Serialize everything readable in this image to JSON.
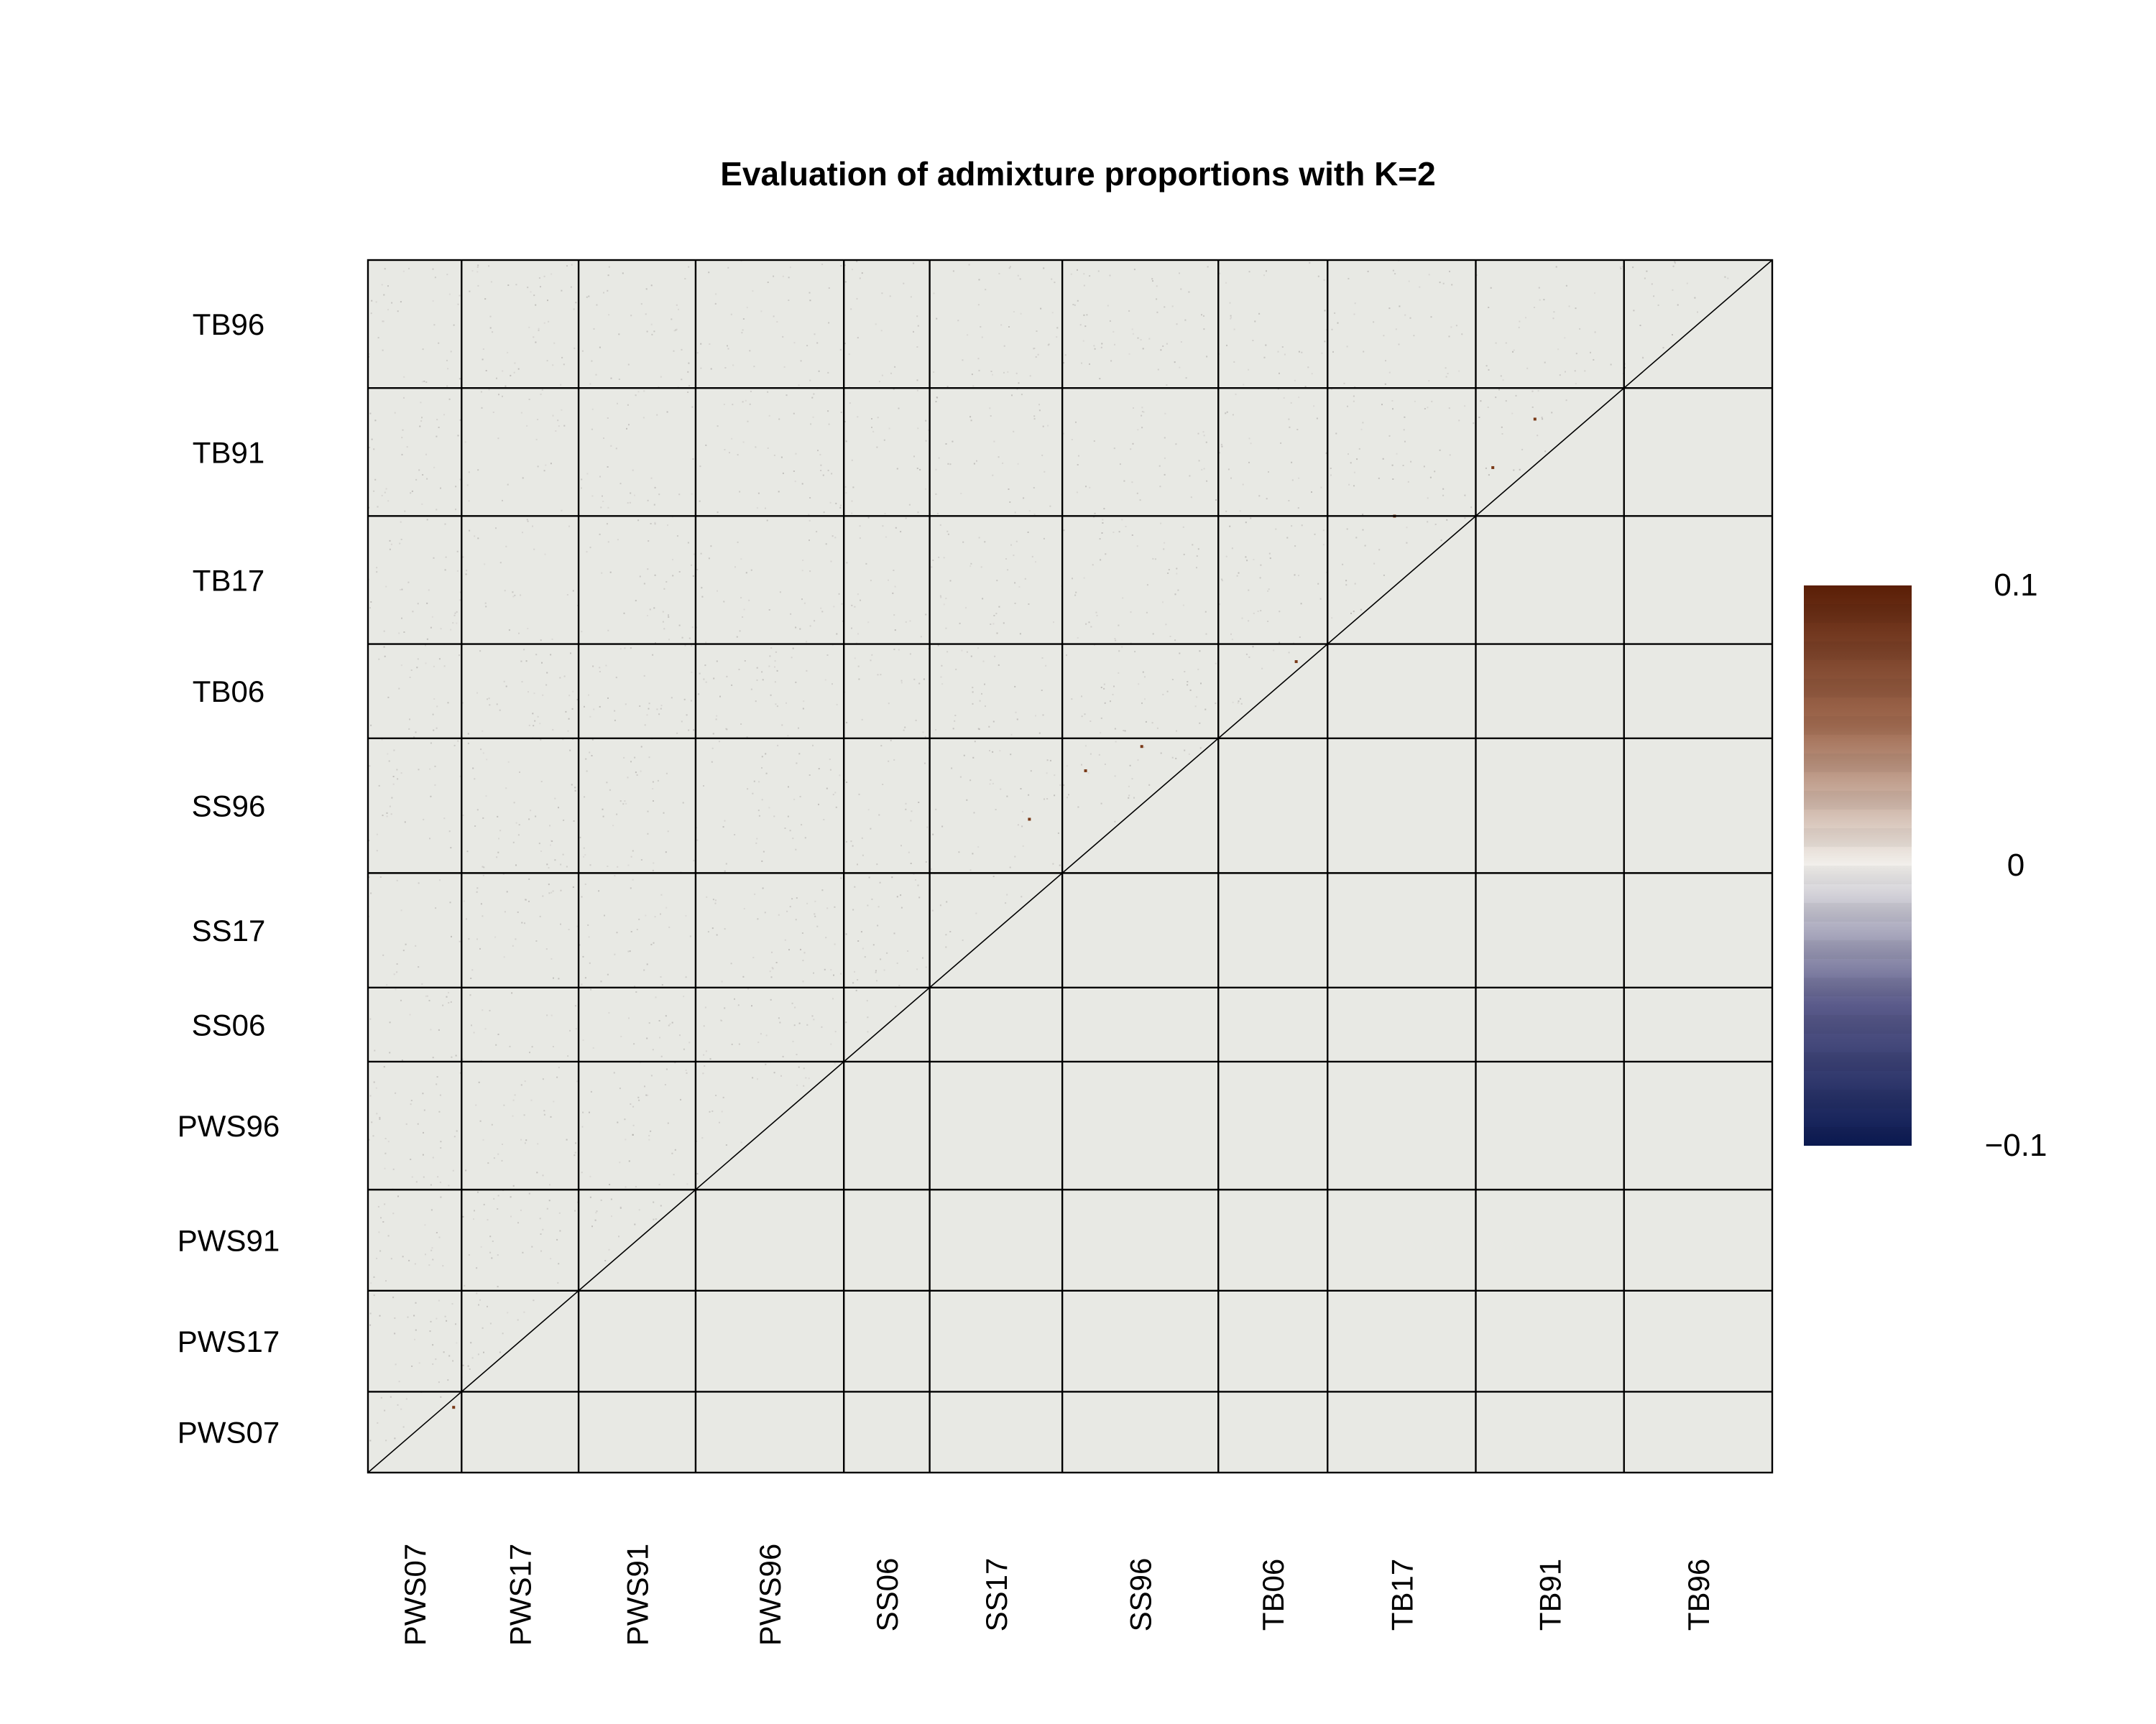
{
  "chart_data": {
    "type": "heatmap",
    "title": "Evaluation of admixture proportions with K=2",
    "populations": [
      "PWS07",
      "PWS17",
      "PWS91",
      "PWS96",
      "SS06",
      "SS17",
      "SS96",
      "TB06",
      "TB17",
      "TB91",
      "TB96"
    ],
    "group_sizes": [
      12,
      15,
      15,
      19,
      11,
      17,
      20,
      14,
      19,
      19,
      19
    ],
    "colorbar": {
      "min": -0.1,
      "max": 0.1,
      "tick_labels": [
        "0.1",
        "0",
        "−0.1"
      ],
      "colors": [
        "#0b1a52",
        "#f2f0ec",
        "#5a1e06"
      ]
    },
    "cell_color": "#e8e9e4",
    "value_range": [
      -0.1,
      0.1
    ],
    "note_values": "Residual correlations are near 0 throughout (grey cells), with sparse small positive outliers."
  }
}
